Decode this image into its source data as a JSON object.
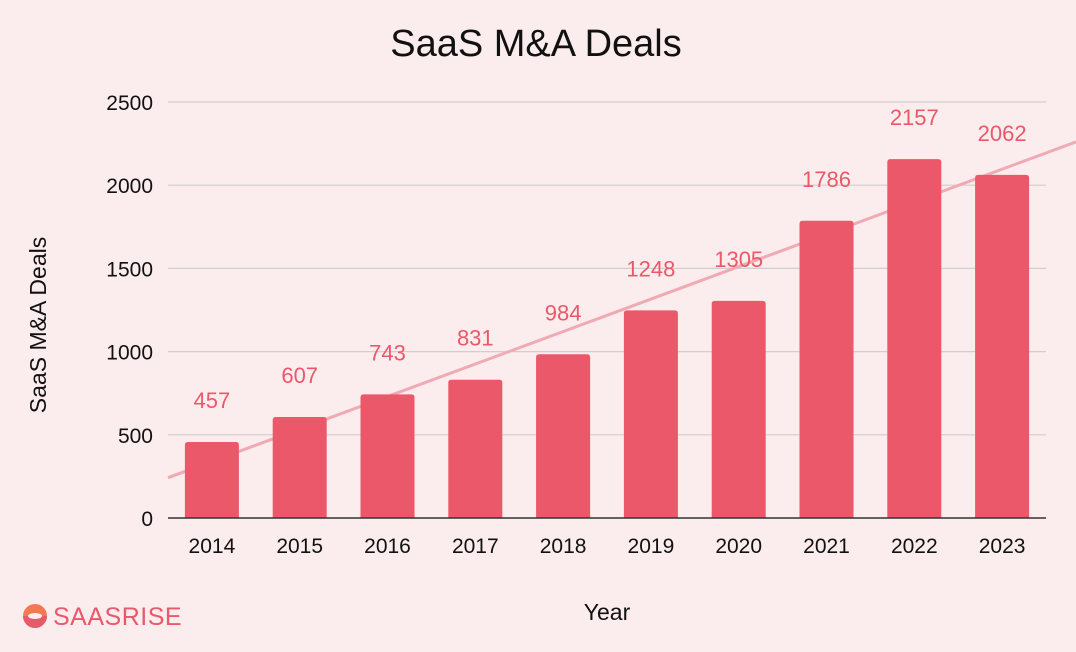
{
  "brand": {
    "name": "SAASRISE",
    "color": "#e8596b",
    "icon": "saasrise-logo-icon"
  },
  "colors": {
    "bar": "#eb5869",
    "label": "#eb5869",
    "trendline": "#f0aab3",
    "grid": "#cfcfcf",
    "axis": "#333333",
    "background": "#fbeced"
  },
  "chart_data": {
    "type": "bar",
    "title": "SaaS M&A Deals",
    "xlabel": "Year",
    "ylabel": "SaaS M&A Deals",
    "categories": [
      "2014",
      "2015",
      "2016",
      "2017",
      "2018",
      "2019",
      "2020",
      "2021",
      "2022",
      "2023"
    ],
    "series": [
      {
        "values": [
          457,
          607,
          743,
          831,
          984,
          1248,
          1305,
          1786,
          2157,
          2062
        ]
      }
    ],
    "data_labels": [
      "457",
      "607",
      "743",
      "831",
      "984",
      "1248",
      "1305",
      "1786",
      "2157",
      "2062"
    ],
    "ylim": [
      0,
      2500
    ],
    "yticks": [
      "0",
      "500",
      "1000",
      "1500",
      "2000",
      "2500"
    ],
    "grid": true,
    "trendline": {
      "type": "linear",
      "shown": true
    },
    "legend": "none"
  }
}
